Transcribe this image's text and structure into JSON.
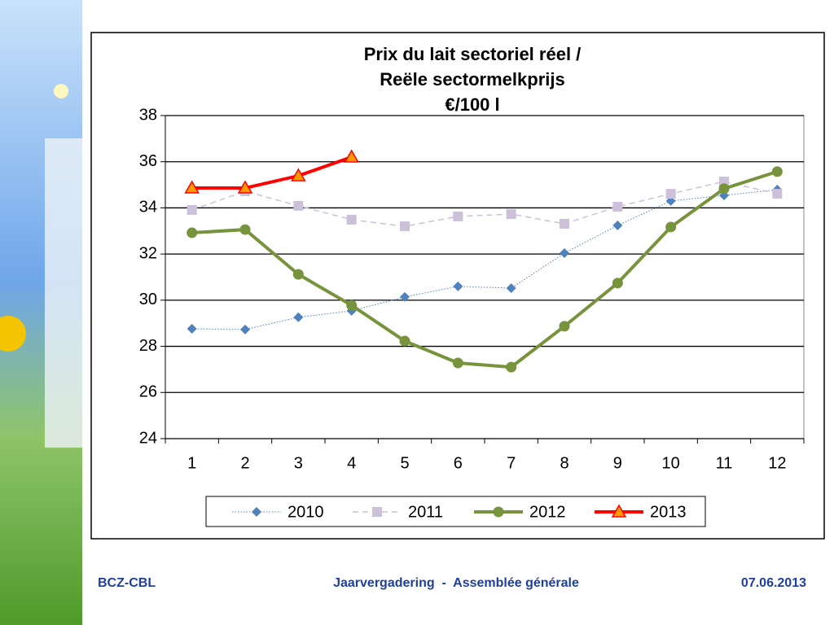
{
  "chart_data": {
    "type": "line",
    "title": [
      "Prix du lait sectoriel réel /",
      "Reële sectormelkprijs",
      "€/100 l"
    ],
    "categories": [
      1,
      2,
      3,
      4,
      5,
      6,
      7,
      8,
      9,
      10,
      11,
      12
    ],
    "ylim": [
      24,
      38
    ],
    "yticks": [
      24,
      26,
      28,
      30,
      32,
      34,
      36,
      38
    ],
    "grid": true,
    "legend": "bottom",
    "series": [
      {
        "name": "2010",
        "color": "#4f81bd",
        "marker": "diamond",
        "dashed": "dotted",
        "line_width": 1,
        "values": [
          28.76,
          28.73,
          29.26,
          29.54,
          30.14,
          30.6,
          30.52,
          32.04,
          33.24,
          34.3,
          34.54,
          34.79
        ]
      },
      {
        "name": "2011",
        "color": "#ccc0da",
        "marker": "square",
        "dashed": "dashed",
        "line_width": 1.5,
        "values": [
          33.91,
          34.72,
          34.09,
          33.49,
          33.2,
          33.63,
          33.73,
          33.31,
          34.05,
          34.61,
          35.14,
          34.61
        ]
      },
      {
        "name": "2012",
        "color": "#77933c",
        "marker": "circle",
        "dashed": "solid",
        "line_width": 4,
        "values": [
          32.92,
          33.06,
          31.12,
          29.78,
          28.23,
          27.28,
          27.1,
          28.87,
          30.74,
          33.17,
          34.83,
          35.57
        ]
      },
      {
        "name": "2013",
        "color": "#ff0000",
        "marker": "triangle",
        "dashed": "solid",
        "line_width": 4,
        "values": [
          34.86,
          34.86,
          35.39,
          36.2,
          null,
          null,
          null,
          null,
          null,
          null,
          null,
          null
        ]
      }
    ]
  },
  "footer": {
    "left": "BCZ-CBL",
    "center": "Jaarvergadering  -  Assemblée générale",
    "right": "07.06.2013"
  }
}
